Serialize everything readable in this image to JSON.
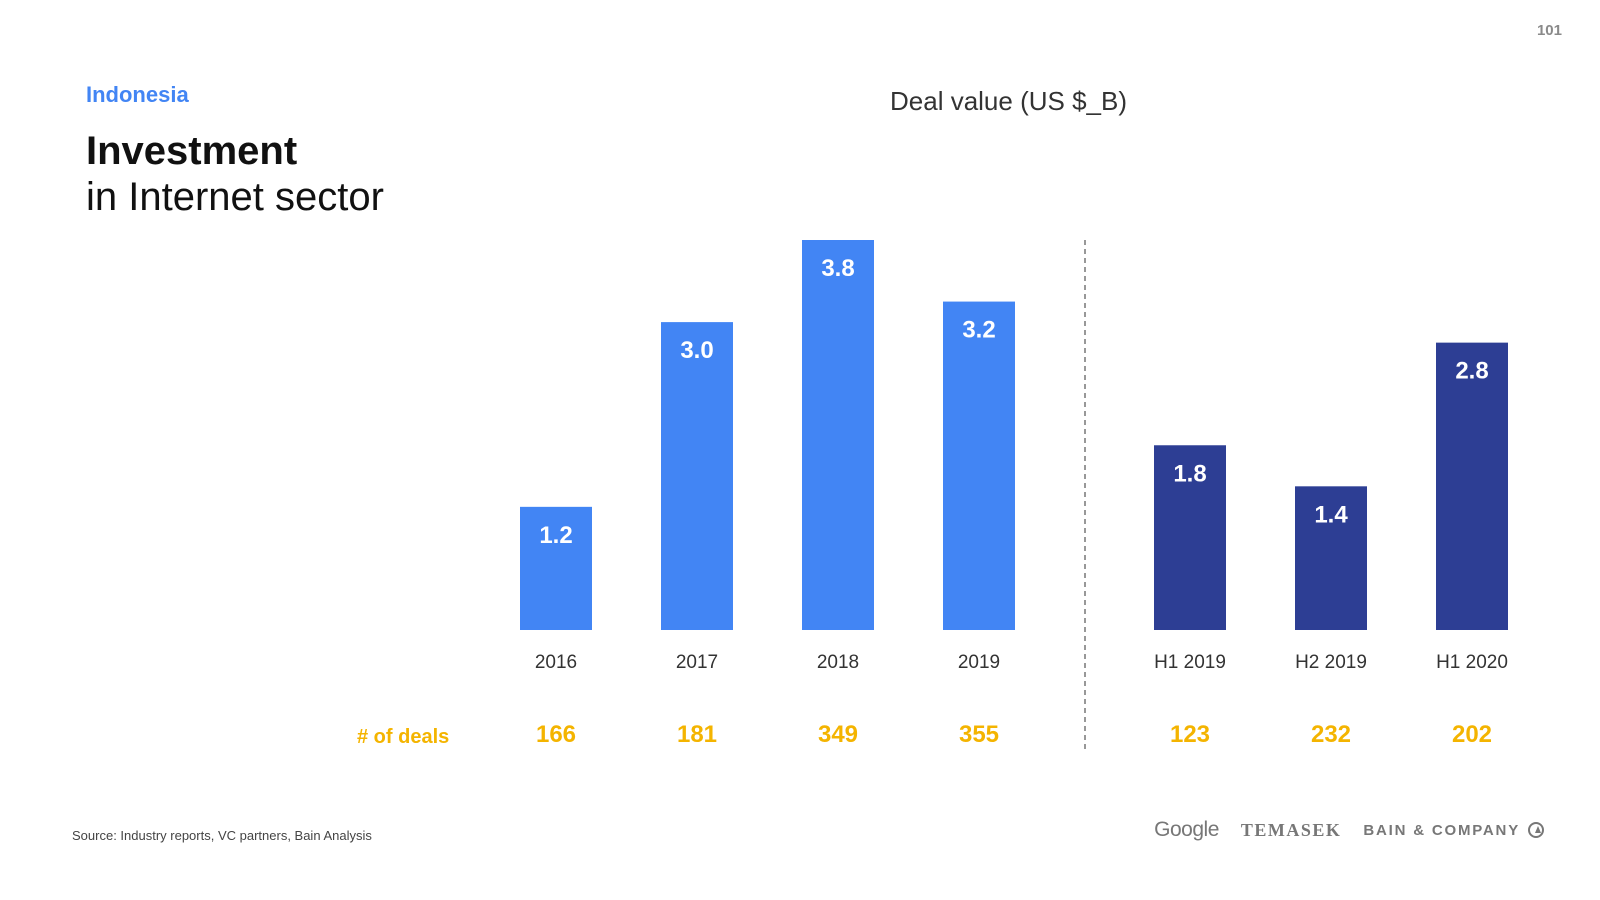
{
  "page_number": "101",
  "header": {
    "region": "Indonesia",
    "title_main": "Investment",
    "title_sub": "in Internet sector"
  },
  "chart_data": {
    "type": "bar",
    "title": "Deal value (US $_B)",
    "categories": [
      "2016",
      "2017",
      "2018",
      "2019",
      "H1 2019",
      "H2 2019",
      "H1 2020"
    ],
    "values": [
      1.2,
      3.0,
      3.8,
      3.2,
      1.8,
      1.4,
      2.8
    ],
    "value_labels": [
      "1.2",
      "3.0",
      "3.8",
      "3.2",
      "1.8",
      "1.4",
      "2.8"
    ],
    "groups": [
      {
        "categories": [
          "2016",
          "2017",
          "2018",
          "2019"
        ],
        "color": "#4285f4"
      },
      {
        "categories": [
          "H1 2019",
          "H2 2019",
          "H1 2020"
        ],
        "color": "#2d3e94"
      }
    ],
    "deals_label": "# of deals",
    "deals": [
      "166",
      "181",
      "349",
      "355",
      "123",
      "232",
      "202"
    ],
    "deals_color": "#f4b400",
    "separator": "dashed line between 2019 and H1 2019",
    "ylim": [
      0,
      3.8
    ],
    "grid": false
  },
  "footer": {
    "source": "Source: Industry reports, VC partners, Bain Analysis",
    "logos": {
      "google": "Google",
      "temasek": "TEMASEK",
      "bain": "BAIN & COMPANY"
    }
  }
}
